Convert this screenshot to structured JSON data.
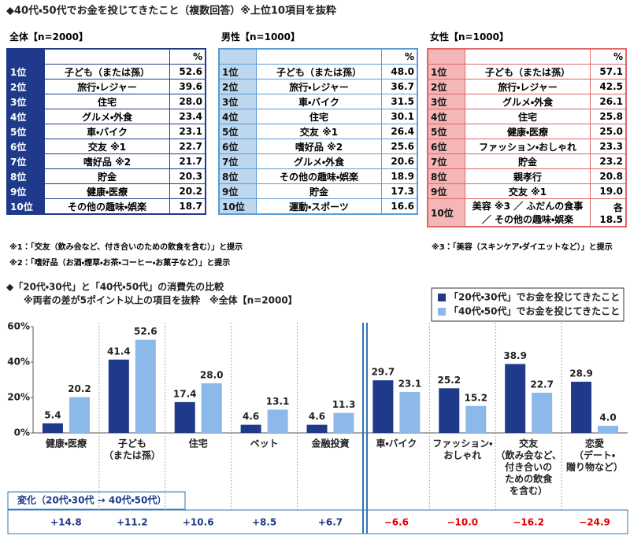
{
  "title": "◆40代・50代でお金を投じてきたこと（複数回答）※上位10項目を抜粋",
  "tables": [
    {
      "heading": "全体【n=2000】",
      "unit": "%",
      "rows": [
        [
          "1位",
          "子ども（または孫）",
          "52.6"
        ],
        [
          "2位",
          "旅行・レジャー",
          "39.6"
        ],
        [
          "3位",
          "住宅",
          "28.0"
        ],
        [
          "4位",
          "グルメ・外食",
          "23.4"
        ],
        [
          "5位",
          "車・バイク",
          "23.1"
        ],
        [
          "6位",
          "交友 ※1",
          "22.7"
        ],
        [
          "7位",
          "嗜好品 ※2",
          "21.7"
        ],
        [
          "8位",
          "貯金",
          "20.3"
        ],
        [
          "9位",
          "健康・医療",
          "20.2"
        ],
        [
          "10位",
          "その他の趣味・娯楽",
          "18.7"
        ]
      ]
    },
    {
      "heading": "男性【n=1000】",
      "unit": "%",
      "rows": [
        [
          "1位",
          "子ども（または孫）",
          "48.0"
        ],
        [
          "2位",
          "旅行・レジャー",
          "36.7"
        ],
        [
          "3位",
          "車・バイク",
          "31.5"
        ],
        [
          "4位",
          "住宅",
          "30.1"
        ],
        [
          "5位",
          "交友 ※1",
          "26.4"
        ],
        [
          "6位",
          "嗜好品 ※2",
          "25.6"
        ],
        [
          "7位",
          "グルメ・外食",
          "20.6"
        ],
        [
          "8位",
          "その他の趣味・娯楽",
          "18.9"
        ],
        [
          "9位",
          "貯金",
          "17.3"
        ],
        [
          "10位",
          "運動・スポーツ",
          "16.6"
        ]
      ]
    },
    {
      "heading": "女性【n=1000】",
      "unit": "%",
      "rows": [
        [
          "1位",
          "子ども（または孫）",
          "57.1"
        ],
        [
          "2位",
          "旅行・レジャー",
          "42.5"
        ],
        [
          "3位",
          "グルメ・外食",
          "26.1"
        ],
        [
          "4位",
          "住宅",
          "25.8"
        ],
        [
          "5位",
          "健康・医療",
          "25.0"
        ],
        [
          "6位",
          "ファッション・おしゃれ",
          "23.3"
        ],
        [
          "7位",
          "貯金",
          "23.2"
        ],
        [
          "8位",
          "親孝行",
          "20.8"
        ],
        [
          "9位",
          "交友 ※1",
          "19.0"
        ],
        [
          "10位",
          "美容 ※3 ／ ふだんの食事 ／ その他の趣味・娯楽",
          "各 18.5"
        ]
      ]
    }
  ],
  "footnotes": [
    "※1：「交友（飲み会など、付き合いのための飲食を含む）」と提示",
    "※2：「嗜好品（お酒・煙草・お茶・コーヒー・お菓子など）」と提示",
    "※3：「美容（スキンケア・ダイエットなど）」と提示"
  ],
  "chart_data": {
    "type": "bar",
    "title": "◆「20代・30代」と「40代・50代」の消費先の比較",
    "subtitle": "※両者の差が5ポイント以上の項目を抜粋　※全体【n=2000】",
    "categories": [
      [
        "健康・医療"
      ],
      [
        "子ども",
        "（または孫）"
      ],
      [
        "住宅"
      ],
      [
        "ペット"
      ],
      [
        "金融投資"
      ],
      [
        "車・バイク"
      ],
      [
        "ファッション・",
        "おしゃれ"
      ],
      [
        "交友",
        "（飲み会など、",
        "付き合いの",
        "ための飲食",
        "を含む）"
      ],
      [
        "恋愛",
        "（デート・",
        "贈り物など）"
      ]
    ],
    "series": [
      {
        "name": "「20代・30代」でお金を投じてきたこと",
        "color": "#1f3a8a",
        "values": [
          5.4,
          41.4,
          17.4,
          4.6,
          4.6,
          29.7,
          25.2,
          38.9,
          28.9
        ],
        "value_labels": [
          "5.4",
          "41.4",
          "17.4",
          "4.6",
          "4.6",
          "29.7",
          "25.2",
          "38.9",
          "28.9"
        ]
      },
      {
        "name": "「40代・50代」でお金を投じてきたこと",
        "color": "#8db8ea",
        "values": [
          20.2,
          52.6,
          28.0,
          13.1,
          11.3,
          23.1,
          15.2,
          22.7,
          4.0
        ],
        "value_labels": [
          "20.2",
          "52.6",
          "28.0",
          "13.1",
          "11.3",
          "23.1",
          "15.2",
          "22.7",
          "4.0"
        ]
      }
    ],
    "ylim": [
      0,
      60
    ],
    "yticks": [
      {
        "value": 0,
        "label": "0%"
      },
      {
        "value": 20,
        "label": "20%"
      },
      {
        "value": 40,
        "label": "40%"
      },
      {
        "value": 60,
        "label": "60%"
      }
    ],
    "grid": false,
    "change": {
      "label": "変化（20代・30代 → 40代・50代）",
      "values": [
        14.8,
        11.2,
        10.6,
        8.5,
        6.7,
        -6.6,
        -10.0,
        -16.2,
        -24.9
      ],
      "value_labels": [
        "+14.8",
        "+11.2",
        "+10.6",
        "+8.5",
        "+6.7",
        "−6.6",
        "−10.0",
        "−16.2",
        "−24.9"
      ]
    }
  }
}
